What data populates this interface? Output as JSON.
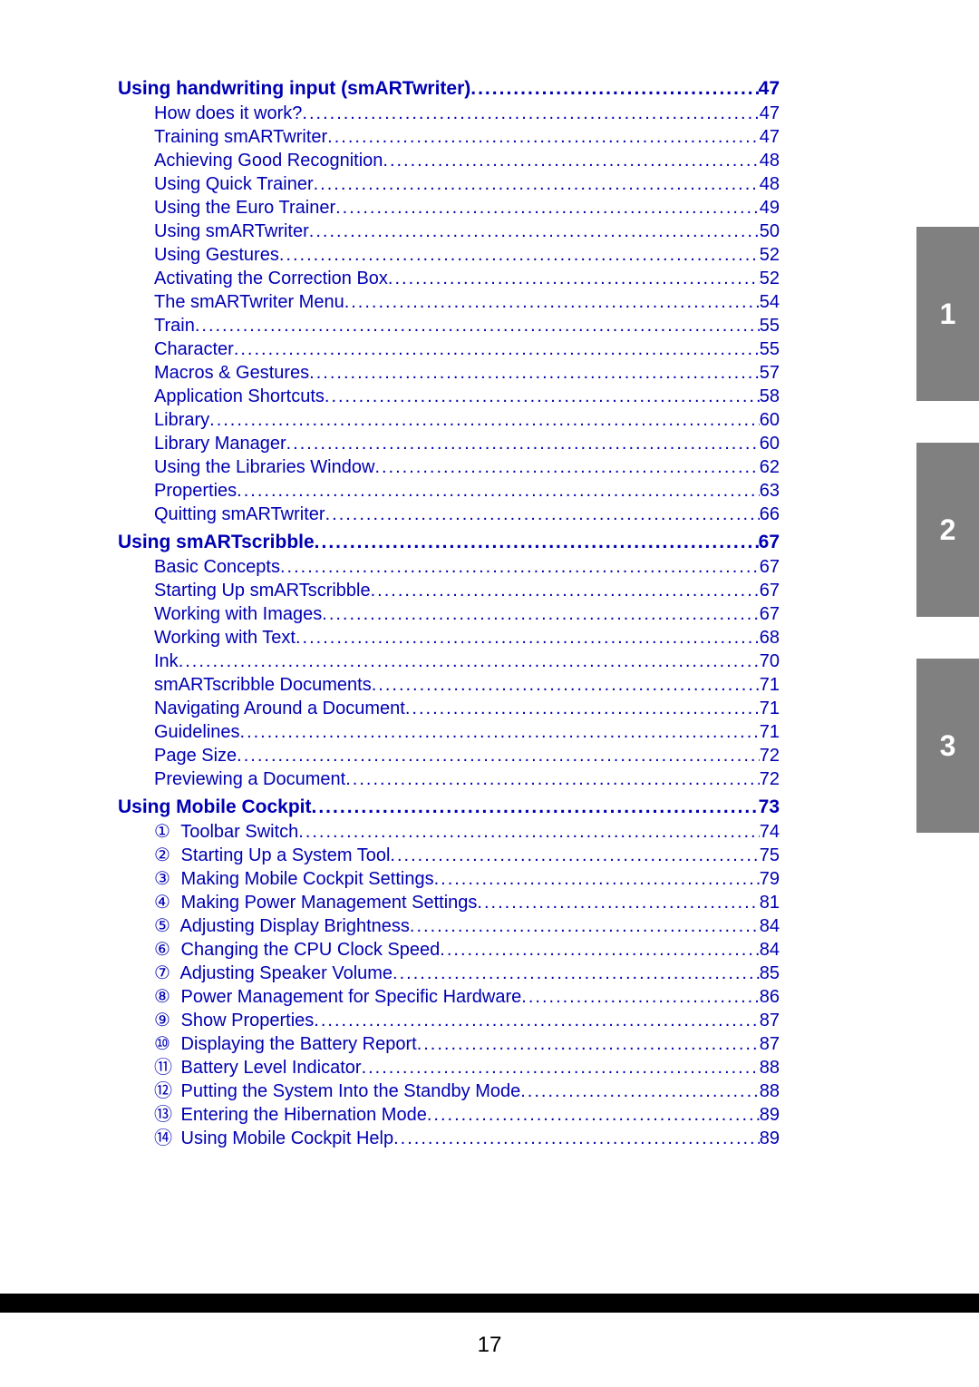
{
  "colors": {
    "link": "#0000b3",
    "tab_bg": "#808080",
    "tab_fg": "#ffffff",
    "black": "#000000",
    "white": "#ffffff"
  },
  "page_number": "17",
  "leader_char": ".",
  "tabs": [
    "1",
    "2",
    "3"
  ],
  "toc": [
    {
      "title": "Using handwriting input (smARTwriter)",
      "page": "47",
      "items": [
        {
          "title": "How does it work?",
          "page": "47"
        },
        {
          "title": "Training smARTwriter",
          "page": "47"
        },
        {
          "title": "Achieving Good Recognition",
          "page": "48"
        },
        {
          "title": "Using Quick Trainer",
          "page": "48"
        },
        {
          "title": "Using the Euro Trainer",
          "page": "49"
        },
        {
          "title": "Using smARTwriter",
          "page": "50"
        },
        {
          "title": "Using Gestures",
          "page": "52"
        },
        {
          "title": "Activating the Correction Box",
          "page": "52"
        },
        {
          "title": "The smARTwriter Menu",
          "page": "54"
        },
        {
          "title": "Train",
          "page": "55"
        },
        {
          "title": "Character",
          "page": "55"
        },
        {
          "title": "Macros & Gestures",
          "page": "57"
        },
        {
          "title": "Application Shortcuts",
          "page": "58"
        },
        {
          "title": "Library",
          "page": "60"
        },
        {
          "title": "Library Manager",
          "page": "60"
        },
        {
          "title": "Using the Libraries Window",
          "page": "62"
        },
        {
          "title": "Properties",
          "page": "63"
        },
        {
          "title": "Quitting smARTwriter",
          "page": "66"
        }
      ]
    },
    {
      "title": "Using smARTscribble",
      "page": "67",
      "items": [
        {
          "title": "Basic Concepts",
          "page": "67"
        },
        {
          "title": "Starting Up smARTscribble",
          "page": "67"
        },
        {
          "title": "Working with Images",
          "page": "67"
        },
        {
          "title": "Working with Text",
          "page": "68"
        },
        {
          "title": "Ink",
          "page": "70"
        },
        {
          "title": "smARTscribble Documents",
          "page": "71"
        },
        {
          "title": "Navigating Around a Document",
          "page": "71"
        },
        {
          "title": "Guidelines",
          "page": "71"
        },
        {
          "title": "Page Size",
          "page": "72"
        },
        {
          "title": "Previewing a Document",
          "page": "72"
        }
      ]
    },
    {
      "title": "Using Mobile Cockpit",
      "page": "73",
      "items": [
        {
          "marker": "①",
          "title": "Toolbar Switch",
          "page": "74"
        },
        {
          "marker": "②",
          "title": "Starting Up a System Tool",
          "page": "75"
        },
        {
          "marker": "③",
          "title": "Making Mobile Cockpit Settings",
          "page": "79"
        },
        {
          "marker": "④",
          "title": "Making Power Management Settings",
          "page": "81"
        },
        {
          "marker": "⑤",
          "title": "Adjusting Display Brightness",
          "page": "84"
        },
        {
          "marker": "⑥",
          "title": "Changing the CPU Clock Speed",
          "page": "84"
        },
        {
          "marker": "⑦",
          "title": "Adjusting Speaker Volume",
          "page": "85"
        },
        {
          "marker": "⑧",
          "title": "Power Management for Specific Hardware",
          "page": "86"
        },
        {
          "marker": "⑨",
          "title": "Show Properties",
          "page": "87"
        },
        {
          "marker": "⑩",
          "title": "Displaying the Battery Report",
          "page": "87"
        },
        {
          "marker": "⑪",
          "title": "Battery Level Indicator",
          "page": "88"
        },
        {
          "marker": "⑫",
          "title": "Putting the System Into the Standby Mode",
          "page": "88"
        },
        {
          "marker": "⑬",
          "title": "Entering the Hibernation Mode",
          "page": "89"
        },
        {
          "marker": "⑭",
          "title": "Using Mobile Cockpit Help",
          "page": "89"
        }
      ]
    }
  ]
}
